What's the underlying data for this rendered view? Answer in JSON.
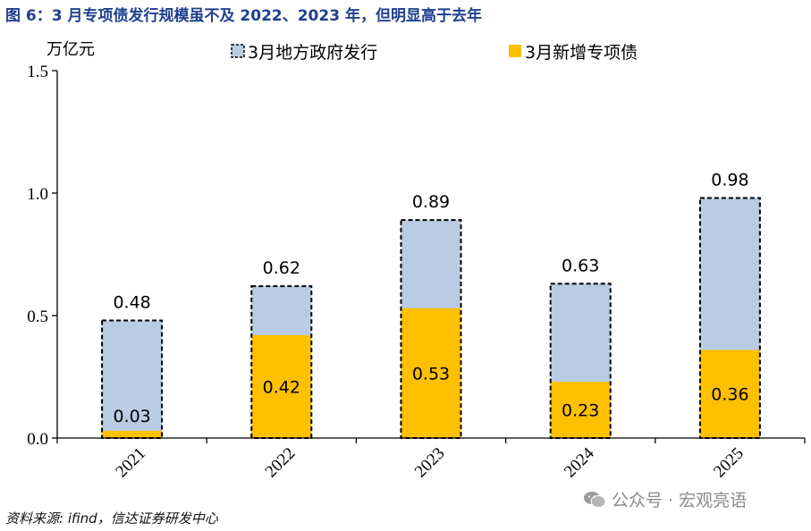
{
  "figure_title": "图 6：3 月专项债发行规模虽不及 2022、2023 年，但明显高于去年",
  "source_note": "资料来源: ifind，信达证券研发中心",
  "watermark": {
    "text": "公众号 · 宏观亮语",
    "icon": "wechat-icon"
  },
  "colors": {
    "total": "#b8cce4",
    "special": "#ffc000",
    "title": "#1f3f8f",
    "border": "#000000"
  },
  "chart_data": {
    "type": "bar",
    "title": "",
    "ylabel": "万亿元",
    "xlabel": "",
    "ylim": [
      0,
      1.5
    ],
    "yticks": [
      "0.0",
      "0.5",
      "1.0",
      "1.5"
    ],
    "ytick_values": [
      0,
      0.5,
      1.0,
      1.5
    ],
    "categories": [
      "2021",
      "2022",
      "2023",
      "2024",
      "2025"
    ],
    "legend_position": "top",
    "series": [
      {
        "name": "3月地方政府发行",
        "values": [
          0.48,
          0.62,
          0.89,
          0.63,
          0.98
        ],
        "labels": [
          "0.48",
          "0.62",
          "0.89",
          "0.63",
          "0.98"
        ]
      },
      {
        "name": "3月新增专项债",
        "values": [
          0.03,
          0.42,
          0.53,
          0.23,
          0.36
        ],
        "labels": [
          "0.03",
          "0.42",
          "0.53",
          "0.23",
          "0.36"
        ]
      }
    ]
  }
}
